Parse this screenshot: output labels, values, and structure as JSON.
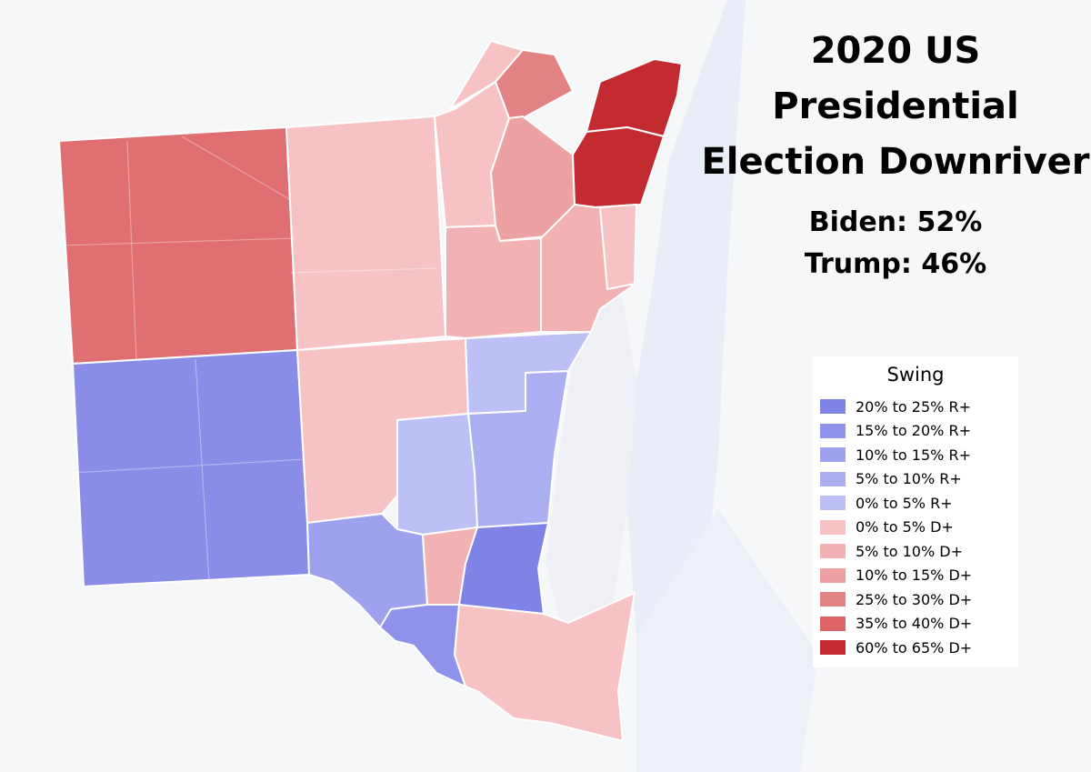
{
  "title": {
    "line1": "2020 US",
    "line2": "Presidential",
    "line3": "Election Downriver"
  },
  "results": {
    "biden": "Biden: 52%",
    "trump": "Trump: 46%"
  },
  "legend": {
    "title": "Swing",
    "items": [
      {
        "label": "20% to 25% R+",
        "color": "#7f83e6"
      },
      {
        "label": "15% to 20% R+",
        "color": "#8e92ea"
      },
      {
        "label": "10% to 15% R+",
        "color": "#9da1ee"
      },
      {
        "label": "5% to 10% R+",
        "color": "#abaff2"
      },
      {
        "label": "0% to 5% R+",
        "color": "#bcc0f6"
      },
      {
        "label": "0% to 5% D+",
        "color": "#f6c2c4"
      },
      {
        "label": "5% to 10% D+",
        "color": "#f2b1b3"
      },
      {
        "label": "10% to 15% D+",
        "color": "#eda1a3"
      },
      {
        "label": "25% to 30% D+",
        "color": "#e38285"
      },
      {
        "label": "35% to 40% D+",
        "color": "#dc6366"
      },
      {
        "label": "60% to 65% D+",
        "color": "#c42b30"
      }
    ]
  }
}
